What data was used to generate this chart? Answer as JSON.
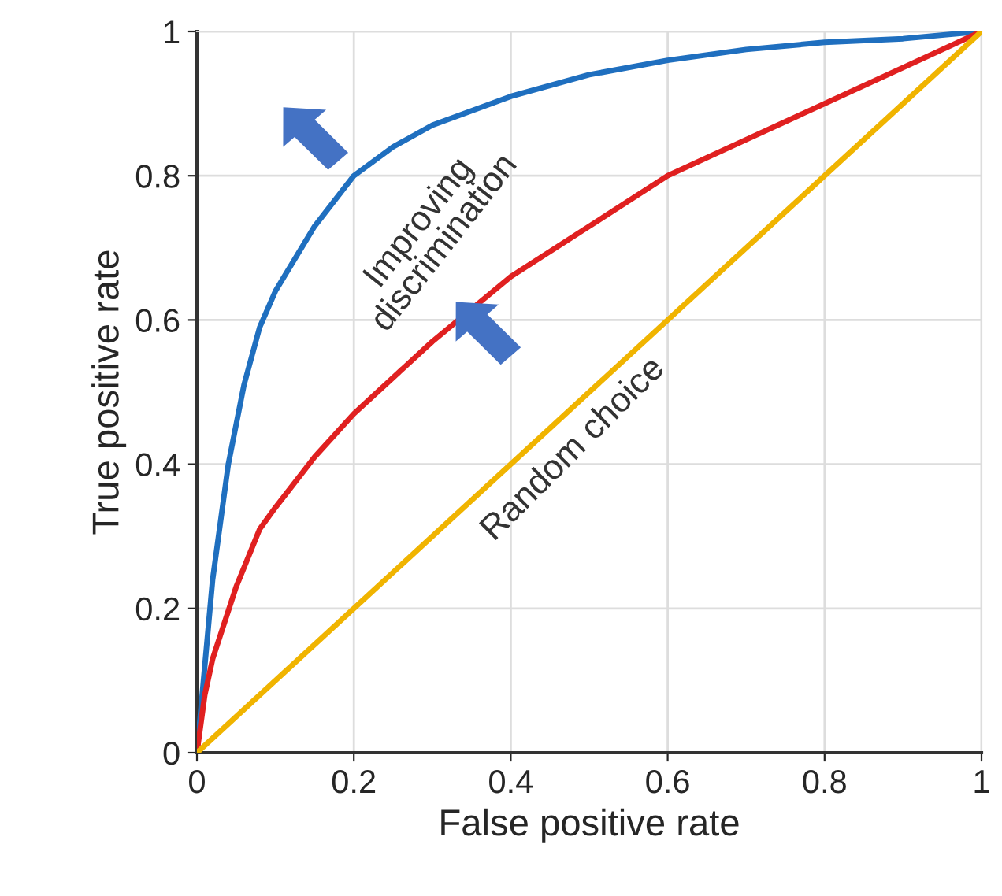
{
  "chart_data": {
    "type": "line",
    "xlabel": "False positive rate",
    "ylabel": "True positive rate",
    "series": [
      {
        "color": "#1f6fbf",
        "x": [
          0,
          0.01,
          0.02,
          0.04,
          0.06,
          0.08,
          0.1,
          0.15,
          0.2,
          0.25,
          0.3,
          0.4,
          0.5,
          0.6,
          0.7,
          0.8,
          0.9,
          1
        ],
        "values": [
          0,
          0.12,
          0.24,
          0.4,
          0.51,
          0.59,
          0.64,
          0.73,
          0.8,
          0.84,
          0.87,
          0.91,
          0.94,
          0.96,
          0.975,
          0.985,
          0.99,
          1
        ]
      },
      {
        "color": "#e02020",
        "x": [
          0,
          0.01,
          0.02,
          0.05,
          0.08,
          0.1,
          0.15,
          0.2,
          0.3,
          0.4,
          0.5,
          0.6,
          0.7,
          0.8,
          0.9,
          1
        ],
        "values": [
          0,
          0.08,
          0.13,
          0.23,
          0.31,
          0.34,
          0.41,
          0.47,
          0.57,
          0.66,
          0.73,
          0.8,
          0.85,
          0.9,
          0.95,
          1
        ]
      },
      {
        "color": "#f0b400",
        "x": [
          0,
          1
        ],
        "values": [
          0,
          1
        ]
      }
    ],
    "xlim": [
      0,
      1
    ],
    "ylim": [
      0,
      1
    ],
    "xticks": [
      0,
      0.2,
      0.4,
      0.6,
      0.8,
      1
    ],
    "yticks": [
      0,
      0.2,
      0.4,
      0.6,
      0.8,
      1
    ],
    "grid": true,
    "annotations": [
      "Improving\ndiscrimination",
      "Random choice"
    ]
  }
}
